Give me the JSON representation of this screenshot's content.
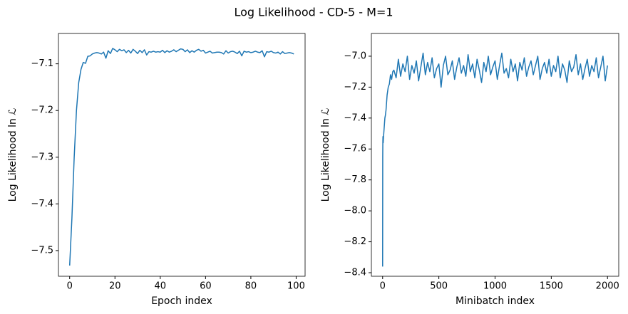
{
  "title": "Log Likelihood - CD-5 - M=1",
  "chart_data": [
    {
      "type": "line",
      "xlabel": "Epoch index",
      "ylabel": "Log Likelihood ln ℒ",
      "xlim": [
        -4.95,
        103.95
      ],
      "ylim": [
        -7.555,
        -7.035
      ],
      "xticks": [
        0,
        20,
        40,
        60,
        80,
        100
      ],
      "yticks": [
        {
          "value": -7.5,
          "label": "−7.5"
        },
        {
          "value": -7.4,
          "label": "−7.4"
        },
        {
          "value": -7.3,
          "label": "−7.3"
        },
        {
          "value": -7.2,
          "label": "−7.2"
        },
        {
          "value": -7.1,
          "label": "−7.1"
        }
      ],
      "color": "#1f77b4",
      "x": [
        0,
        1,
        2,
        3,
        4,
        5,
        6,
        7,
        8,
        9,
        10,
        11,
        12,
        13,
        14,
        15,
        16,
        17,
        18,
        19,
        20,
        21,
        22,
        23,
        24,
        25,
        26,
        27,
        28,
        29,
        30,
        31,
        32,
        33,
        34,
        35,
        36,
        37,
        38,
        39,
        40,
        41,
        42,
        43,
        44,
        45,
        46,
        47,
        48,
        49,
        50,
        51,
        52,
        53,
        54,
        55,
        56,
        57,
        58,
        59,
        60,
        61,
        62,
        63,
        64,
        65,
        66,
        67,
        68,
        69,
        70,
        71,
        72,
        73,
        74,
        75,
        76,
        77,
        78,
        79,
        80,
        81,
        82,
        83,
        84,
        85,
        86,
        87,
        88,
        89,
        90,
        91,
        92,
        93,
        94,
        95,
        96,
        97,
        98,
        99
      ],
      "values": [
        -7.532,
        -7.43,
        -7.3,
        -7.2,
        -7.14,
        -7.112,
        -7.097,
        -7.099,
        -7.084,
        -7.083,
        -7.079,
        -7.077,
        -7.076,
        -7.077,
        -7.079,
        -7.075,
        -7.088,
        -7.072,
        -7.078,
        -7.067,
        -7.07,
        -7.074,
        -7.069,
        -7.072,
        -7.07,
        -7.076,
        -7.071,
        -7.077,
        -7.069,
        -7.073,
        -7.078,
        -7.071,
        -7.076,
        -7.07,
        -7.081,
        -7.074,
        -7.075,
        -7.073,
        -7.075,
        -7.074,
        -7.075,
        -7.071,
        -7.076,
        -7.072,
        -7.075,
        -7.073,
        -7.07,
        -7.074,
        -7.071,
        -7.068,
        -7.069,
        -7.074,
        -7.07,
        -7.076,
        -7.072,
        -7.075,
        -7.071,
        -7.069,
        -7.073,
        -7.071,
        -7.077,
        -7.075,
        -7.073,
        -7.077,
        -7.076,
        -7.075,
        -7.075,
        -7.076,
        -7.079,
        -7.072,
        -7.077,
        -7.074,
        -7.073,
        -7.075,
        -7.078,
        -7.073,
        -7.083,
        -7.073,
        -7.075,
        -7.074,
        -7.076,
        -7.075,
        -7.073,
        -7.075,
        -7.076,
        -7.072,
        -7.085,
        -7.074,
        -7.075,
        -7.073,
        -7.076,
        -7.077,
        -7.075,
        -7.079,
        -7.074,
        -7.078,
        -7.077,
        -7.076,
        -7.077,
        -7.079
      ]
    },
    {
      "type": "line",
      "xlabel": "Minibatch index",
      "ylabel": "Log Likelihood ln ℒ",
      "xlim": [
        -100,
        2100
      ],
      "ylim": [
        -8.423,
        -6.853
      ],
      "xticks": [
        0,
        500,
        1000,
        1500,
        2000
      ],
      "yticks": [
        {
          "value": -8.4,
          "label": "−8.4"
        },
        {
          "value": -8.2,
          "label": "−8.2"
        },
        {
          "value": -8.0,
          "label": "−8.0"
        },
        {
          "value": -7.8,
          "label": "−7.8"
        },
        {
          "value": -7.6,
          "label": "−7.6"
        },
        {
          "value": -7.4,
          "label": "−7.4"
        },
        {
          "value": -7.2,
          "label": "−7.2"
        },
        {
          "value": -7.0,
          "label": "−7.0"
        }
      ],
      "color": "#1f77b4",
      "x": [
        0,
        1,
        2,
        3,
        5,
        8,
        10,
        15,
        20,
        25,
        30,
        40,
        50,
        60,
        70,
        80,
        90,
        100,
        120,
        140,
        160,
        180,
        200,
        220,
        240,
        260,
        280,
        300,
        320,
        340,
        360,
        380,
        400,
        420,
        440,
        460,
        480,
        500,
        520,
        540,
        560,
        580,
        600,
        620,
        640,
        660,
        680,
        700,
        720,
        740,
        760,
        780,
        800,
        820,
        840,
        860,
        880,
        900,
        920,
        940,
        960,
        980,
        1000,
        1020,
        1040,
        1060,
        1080,
        1100,
        1120,
        1140,
        1160,
        1180,
        1200,
        1220,
        1240,
        1260,
        1280,
        1300,
        1320,
        1340,
        1360,
        1380,
        1400,
        1420,
        1440,
        1460,
        1480,
        1500,
        1520,
        1540,
        1560,
        1580,
        1600,
        1620,
        1640,
        1660,
        1680,
        1700,
        1720,
        1740,
        1760,
        1780,
        1800,
        1820,
        1840,
        1860,
        1880,
        1900,
        1920,
        1940,
        1960,
        1980,
        2000
      ],
      "values": [
        -8.36,
        -7.65,
        -7.55,
        -7.52,
        -7.56,
        -7.52,
        -7.5,
        -7.45,
        -7.4,
        -7.38,
        -7.35,
        -7.25,
        -7.2,
        -7.18,
        -7.12,
        -7.15,
        -7.1,
        -7.09,
        -7.14,
        -7.02,
        -7.13,
        -7.05,
        -7.1,
        -7.0,
        -7.15,
        -7.06,
        -7.11,
        -7.03,
        -7.16,
        -7.07,
        -6.98,
        -7.12,
        -7.04,
        -7.1,
        -7.01,
        -7.14,
        -7.08,
        -7.05,
        -7.2,
        -7.06,
        -7.0,
        -7.12,
        -7.09,
        -7.03,
        -7.15,
        -7.07,
        -7.01,
        -7.11,
        -7.06,
        -7.13,
        -6.99,
        -7.1,
        -7.05,
        -7.14,
        -7.02,
        -7.09,
        -7.17,
        -7.04,
        -7.1,
        -7.0,
        -7.12,
        -7.07,
        -7.03,
        -7.15,
        -7.06,
        -6.98,
        -7.11,
        -7.08,
        -7.14,
        -7.02,
        -7.1,
        -7.05,
        -7.16,
        -7.04,
        -7.09,
        -7.01,
        -7.13,
        -7.07,
        -7.03,
        -7.12,
        -7.06,
        -7.0,
        -7.15,
        -7.08,
        -7.04,
        -7.11,
        -7.02,
        -7.13,
        -7.06,
        -7.1,
        -7.0,
        -7.14,
        -7.05,
        -7.09,
        -7.17,
        -7.03,
        -7.1,
        -7.07,
        -6.99,
        -7.12,
        -7.05,
        -7.15,
        -7.08,
        -7.02,
        -7.13,
        -7.06,
        -7.1,
        -7.01,
        -7.14,
        -7.07,
        -7.0,
        -7.16,
        -7.06
      ]
    }
  ]
}
